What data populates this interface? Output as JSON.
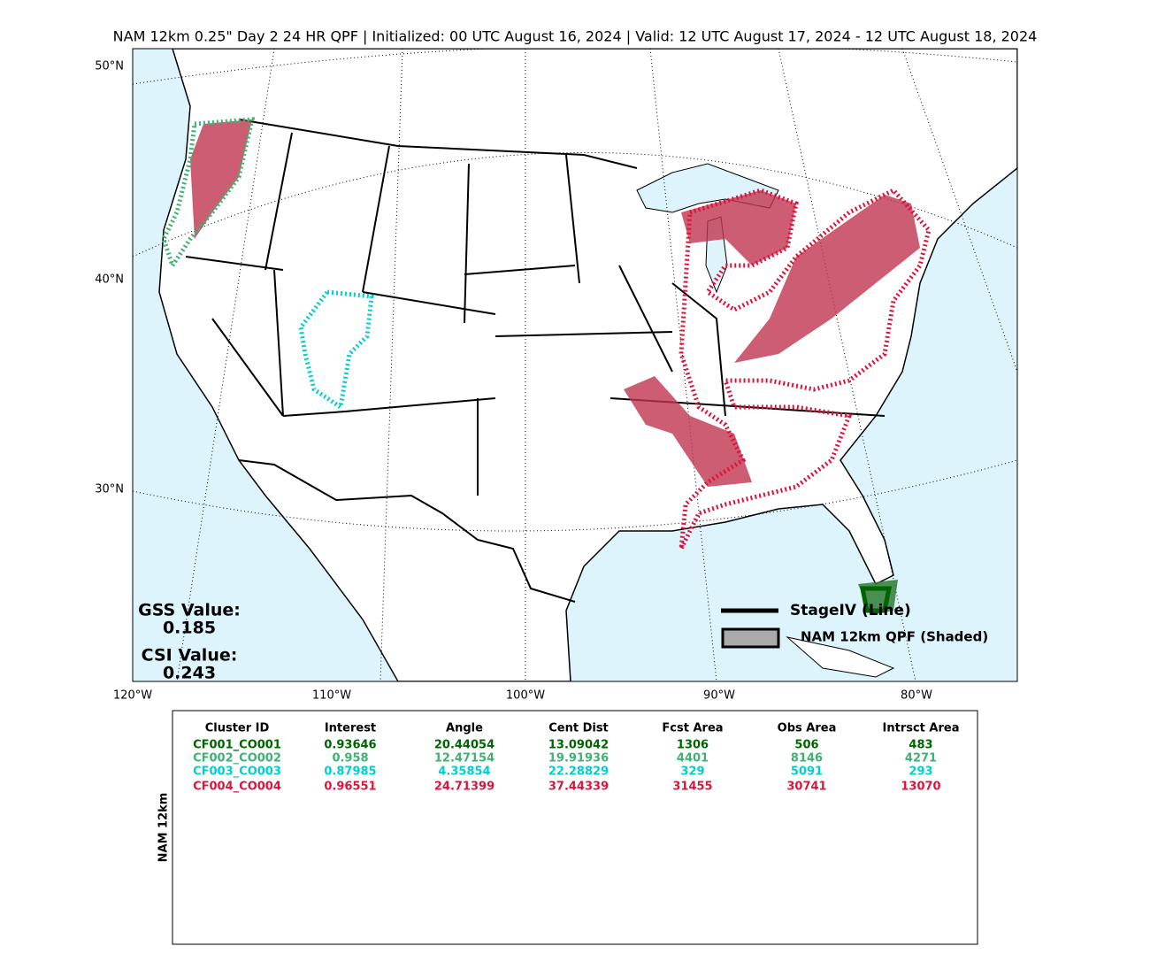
{
  "title": "NAM 12km 0.25\" Day 2 24 HR QPF | Initialized: 00 UTC August 16, 2024 | Valid: 12 UTC August 17, 2024 - 12 UTC August 18, 2024",
  "map": {
    "lat_labels": [
      "50°N",
      "40°N",
      "30°N"
    ],
    "lon_labels": [
      "120°W",
      "110°W",
      "100°W",
      "90°W",
      "80°W"
    ]
  },
  "scores": {
    "gss_label": "GSS Value:",
    "gss_value": "0.185",
    "csi_label": "CSI Value:",
    "csi_value": "0.243"
  },
  "legend": {
    "line": "StageIV (Line)",
    "shaded": "NAM 12km QPF (Shaded)"
  },
  "table": {
    "side_label": "NAM 12km",
    "headers": [
      "Cluster ID",
      "Interest",
      "Angle",
      "Cent Dist",
      "Fcst Area",
      "Obs Area",
      "Intrsct Area"
    ],
    "rows": [
      {
        "color": "#006400",
        "cells": [
          "CF001_CO001",
          "0.93646",
          "20.44054",
          "13.09042",
          "1306",
          "506",
          "483"
        ]
      },
      {
        "color": "#3cb371",
        "cells": [
          "CF002_CO002",
          "0.958",
          "12.47154",
          "19.91936",
          "4401",
          "8146",
          "4271"
        ]
      },
      {
        "color": "#00ced1",
        "cells": [
          "CF003_CO003",
          "0.87985",
          "4.35854",
          "22.28829",
          "329",
          "5091",
          "293"
        ]
      },
      {
        "color": "#dc143c",
        "cells": [
          "CF004_CO004",
          "0.96551",
          "24.71399",
          "37.44339",
          "31455",
          "30741",
          "13070"
        ]
      }
    ]
  }
}
